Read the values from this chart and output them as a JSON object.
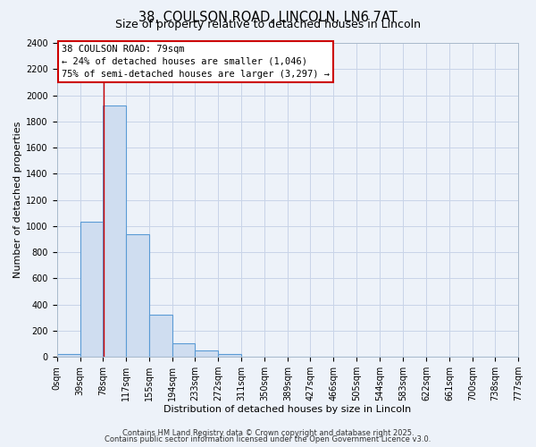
{
  "title": "38, COULSON ROAD, LINCOLN, LN6 7AT",
  "subtitle": "Size of property relative to detached houses in Lincoln",
  "xlabel": "Distribution of detached houses by size in Lincoln",
  "ylabel": "Number of detached properties",
  "bar_edges": [
    0,
    39,
    78,
    117,
    155,
    194,
    233,
    272,
    311,
    350,
    389,
    427,
    466,
    505,
    544,
    583,
    622,
    661,
    700,
    738,
    777
  ],
  "bar_heights": [
    20,
    1030,
    1920,
    940,
    320,
    105,
    50,
    20,
    0,
    0,
    0,
    0,
    0,
    0,
    0,
    0,
    0,
    0,
    0,
    0
  ],
  "tick_labels": [
    "0sqm",
    "39sqm",
    "78sqm",
    "117sqm",
    "155sqm",
    "194sqm",
    "233sqm",
    "272sqm",
    "311sqm",
    "350sqm",
    "389sqm",
    "427sqm",
    "466sqm",
    "505sqm",
    "544sqm",
    "583sqm",
    "622sqm",
    "661sqm",
    "700sqm",
    "738sqm",
    "777sqm"
  ],
  "bar_color": "#cfddf0",
  "bar_edge_color": "#5b9bd5",
  "grid_color": "#c8d4e8",
  "background_color": "#edf2f9",
  "vline_x": 79,
  "vline_color": "#cc0000",
  "annotation_line1": "38 COULSON ROAD: 79sqm",
  "annotation_line2": "← 24% of detached houses are smaller (1,046)",
  "annotation_line3": "75% of semi-detached houses are larger (3,297) →",
  "annotation_box_color": "#ffffff",
  "annotation_box_edge_color": "#cc0000",
  "ylim": [
    0,
    2400
  ],
  "yticks": [
    0,
    200,
    400,
    600,
    800,
    1000,
    1200,
    1400,
    1600,
    1800,
    2000,
    2200,
    2400
  ],
  "footnote1": "Contains HM Land Registry data © Crown copyright and database right 2025.",
  "footnote2": "Contains public sector information licensed under the Open Government Licence v3.0.",
  "title_fontsize": 10.5,
  "subtitle_fontsize": 9,
  "axis_label_fontsize": 8,
  "tick_fontsize": 7,
  "annotation_fontsize": 7.5,
  "footnote_fontsize": 6
}
